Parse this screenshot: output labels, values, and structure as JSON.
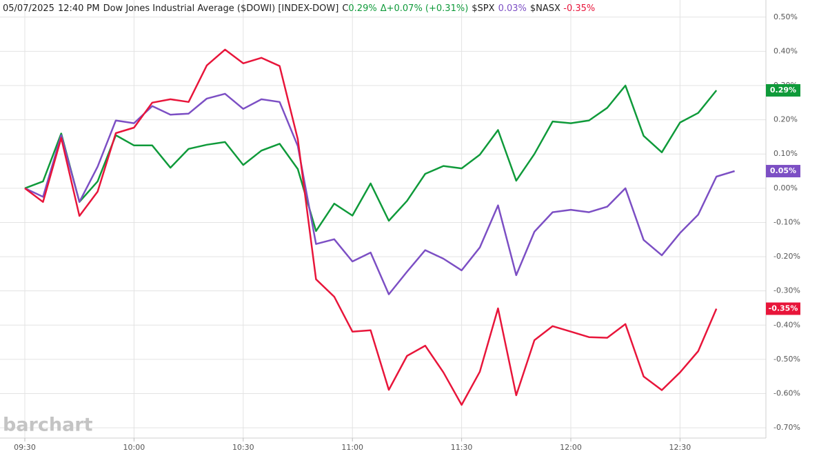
{
  "chart_data": {
    "type": "line",
    "header": [
      {
        "text": "05/07/2025",
        "color": "#222222"
      },
      {
        "text": "12:40 PM",
        "color": "#222222"
      },
      {
        "text": "Dow Jones Industrial Average ($DOWI) [INDEX-DOW]",
        "color": "#222222"
      },
      {
        "text": "C",
        "color": "#222222"
      },
      {
        "text": "0.29%",
        "color": "#0f9a3a"
      },
      {
        "text": "Δ+0.07% (+0.31%)",
        "color": "#0f9a3a"
      },
      {
        "text": "$SPX",
        "color": "#222222"
      },
      {
        "text": "0.03%",
        "color": "#7c4fc4"
      },
      {
        "text": "$NASX",
        "color": "#222222"
      },
      {
        "text": "-0.35%",
        "color": "#e8153a"
      }
    ],
    "watermark": "barchart",
    "categories": [
      "09:30",
      null,
      null,
      null,
      null,
      null,
      "10:00",
      null,
      null,
      null,
      null,
      null,
      "10:30",
      null,
      null,
      null,
      null,
      null,
      "11:00",
      null,
      null,
      null,
      null,
      null,
      "11:30",
      null,
      null,
      null,
      null,
      null,
      "12:00",
      null,
      null,
      null,
      null,
      null,
      "12:30",
      null,
      null,
      null
    ],
    "ylim": [
      -0.73,
      0.55
    ],
    "yticks": [
      {
        "value": 0.5,
        "label": "0.50%"
      },
      {
        "value": 0.4,
        "label": "0.40%"
      },
      {
        "value": 0.3,
        "label": "0.30%"
      },
      {
        "value": 0.2,
        "label": "0.20%"
      },
      {
        "value": 0.1,
        "label": "0.10%"
      },
      {
        "value": 0,
        "label": "0.00%"
      },
      {
        "value": -0.1,
        "label": "-0.10%"
      },
      {
        "value": -0.2,
        "label": "-0.20%"
      },
      {
        "value": -0.3,
        "label": "-0.30%"
      },
      {
        "value": -0.4,
        "label": "-0.40%"
      },
      {
        "value": -0.5,
        "label": "-0.50%"
      },
      {
        "value": -0.6,
        "label": "-0.60%"
      },
      {
        "value": -0.7,
        "label": "-0.70%"
      }
    ],
    "grid": true,
    "series": [
      {
        "name": "$DOWI",
        "color": "#0f9a3a",
        "end_label": "0.29%",
        "values": [
          0,
          0.02,
          0.16,
          -0.04,
          0.02,
          0.155,
          0.125,
          0.125,
          0.06,
          0.115,
          0.127,
          0.135,
          0.068,
          0.11,
          0.13,
          0.056,
          -0.125,
          -0.045,
          -0.08,
          0.014,
          -0.095,
          -0.037,
          0.042,
          0.065,
          0.058,
          0.098,
          0.17,
          0.022,
          0.1,
          0.195,
          0.19,
          0.198,
          0.235,
          0.3,
          0.153,
          0.105,
          0.192,
          0.22,
          0.286,
          null
        ]
      },
      {
        "name": "$SPX",
        "color": "#7c4fc4",
        "end_label": "0.05%",
        "values": [
          0,
          -0.025,
          0.155,
          -0.04,
          0.063,
          0.198,
          0.19,
          0.24,
          0.215,
          0.218,
          0.262,
          0.276,
          0.232,
          0.26,
          0.252,
          0.123,
          -0.163,
          -0.149,
          -0.214,
          -0.188,
          -0.31,
          -0.244,
          -0.181,
          -0.206,
          -0.24,
          -0.173,
          -0.05,
          -0.254,
          -0.127,
          -0.07,
          -0.063,
          -0.07,
          -0.054,
          0.0,
          -0.151,
          -0.196,
          -0.131,
          -0.077,
          0.034,
          0.05
        ]
      },
      {
        "name": "$NASX",
        "color": "#e8153a",
        "end_label": "-0.35%",
        "values": [
          0,
          -0.04,
          0.147,
          -0.081,
          -0.01,
          0.161,
          0.177,
          0.25,
          0.26,
          0.252,
          0.359,
          0.405,
          0.365,
          0.381,
          0.357,
          0.143,
          -0.266,
          -0.317,
          -0.419,
          -0.415,
          -0.589,
          -0.49,
          -0.46,
          -0.538,
          -0.633,
          -0.536,
          -0.351,
          -0.605,
          -0.444,
          -0.403,
          -0.419,
          -0.435,
          -0.437,
          -0.397,
          -0.55,
          -0.59,
          -0.538,
          -0.476,
          -0.352,
          null
        ]
      }
    ]
  }
}
